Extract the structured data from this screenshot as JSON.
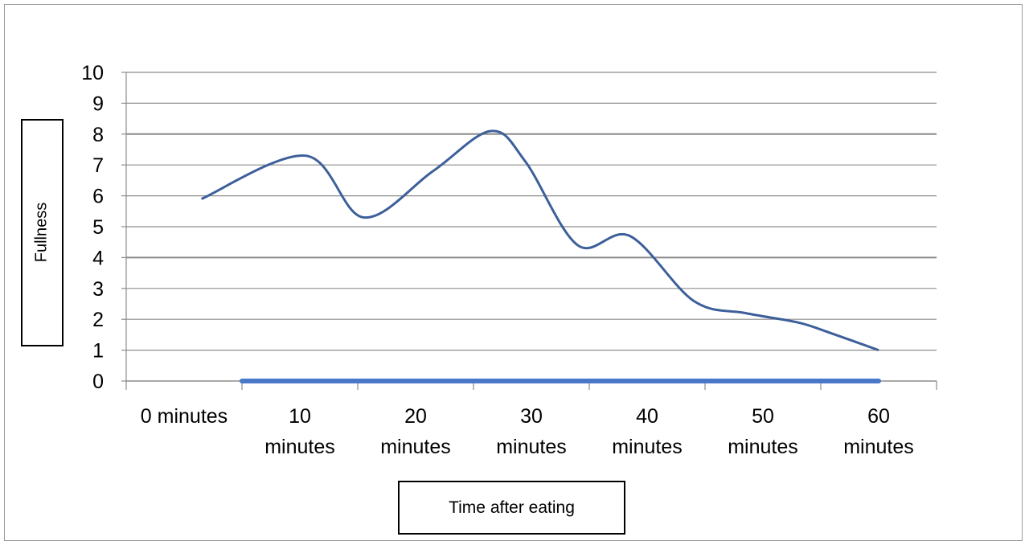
{
  "chart_data": {
    "type": "line",
    "categories": [
      "0 minutes",
      "10 minutes",
      "20 minutes",
      "30 minutes",
      "40 minutes",
      "50 minutes",
      "60 minutes"
    ],
    "x_tick_lines": [
      [
        "0 minutes"
      ],
      [
        "10",
        "minutes"
      ],
      [
        "20",
        "minutes"
      ],
      [
        "30",
        "minutes"
      ],
      [
        "40",
        "minutes"
      ],
      [
        "50",
        "minutes"
      ],
      [
        "60",
        "minutes"
      ]
    ],
    "series": [
      {
        "color": "#3d5f9a",
        "x": [
          0.15,
          1.05,
          1.55,
          2.15,
          2.65,
          2.95,
          3.4,
          3.85,
          4.4,
          4.85,
          5.3,
          5.55,
          6.0
        ],
        "values": [
          5.9,
          7.3,
          5.3,
          6.8,
          8.1,
          7.1,
          4.4,
          4.7,
          2.6,
          2.2,
          1.9,
          1.6,
          1.0
        ]
      },
      {
        "color": "#4a78c8",
        "x": [
          0.5,
          6.0
        ],
        "values": [
          0,
          0
        ]
      }
    ],
    "xlabel": "Time after eating",
    "ylabel": "Fullness",
    "ylim": [
      0,
      10
    ],
    "yticks": [
      "0",
      "1",
      "2",
      "3",
      "4",
      "5",
      "6",
      "7",
      "8",
      "9",
      "10"
    ],
    "grid": true,
    "legend": "none"
  }
}
